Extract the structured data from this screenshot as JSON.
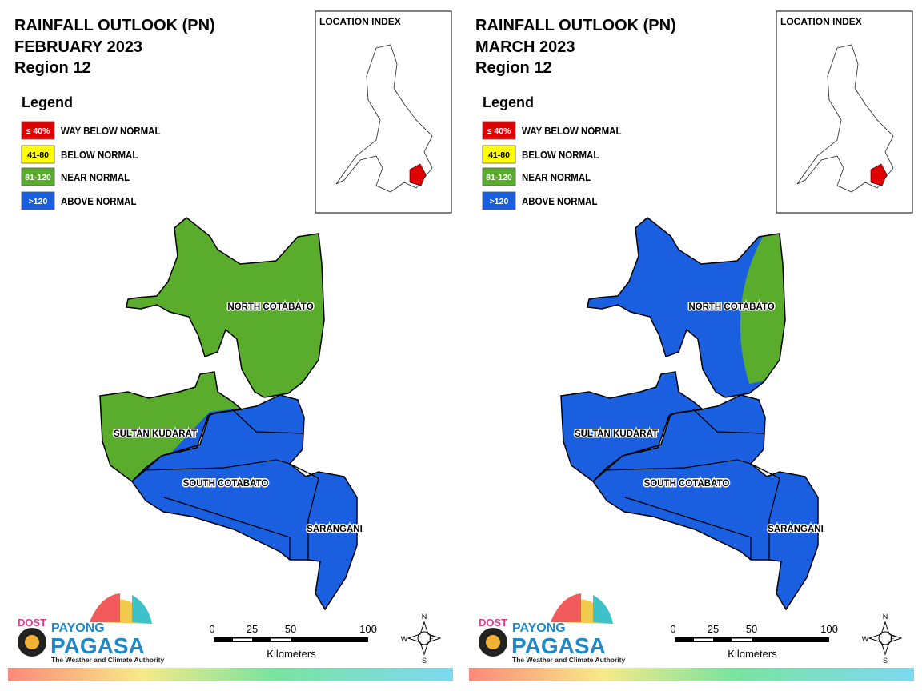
{
  "title": "RAINFALL OUTLOOK (PN)",
  "region": "Region 12",
  "panels": [
    {
      "month": "FEBRUARY 2023"
    },
    {
      "month": "MARCH 2023"
    }
  ],
  "legend": {
    "title": "Legend",
    "items": [
      {
        "range": "≤ 40%",
        "label": "WAY BELOW NORMAL",
        "color": "#e00000"
      },
      {
        "range": "41-80",
        "label": "BELOW NORMAL",
        "color": "#ffff00"
      },
      {
        "range": "81-120",
        "label": "NEAR NORMAL",
        "color": "#5aac2c"
      },
      {
        "range": ">120",
        "label": "ABOVE NORMAL",
        "color": "#1a5fe0"
      }
    ]
  },
  "location_index": "LOCATION INDEX",
  "provinces": [
    "NORTH COTABATO",
    "SULTAN KUDARAT",
    "SOUTH COTABATO",
    "SARANGANI"
  ],
  "scale": {
    "ticks": [
      "0",
      "25",
      "50",
      "100"
    ],
    "unit": "Kilometers"
  },
  "compass": {
    "n": "N",
    "e": "E",
    "s": "S",
    "w": "W"
  },
  "logo": {
    "dost": "DOST",
    "payong": "PAYONG",
    "pagasa": "PAGASA",
    "tagline": "The Weather and Climate Authority"
  }
}
